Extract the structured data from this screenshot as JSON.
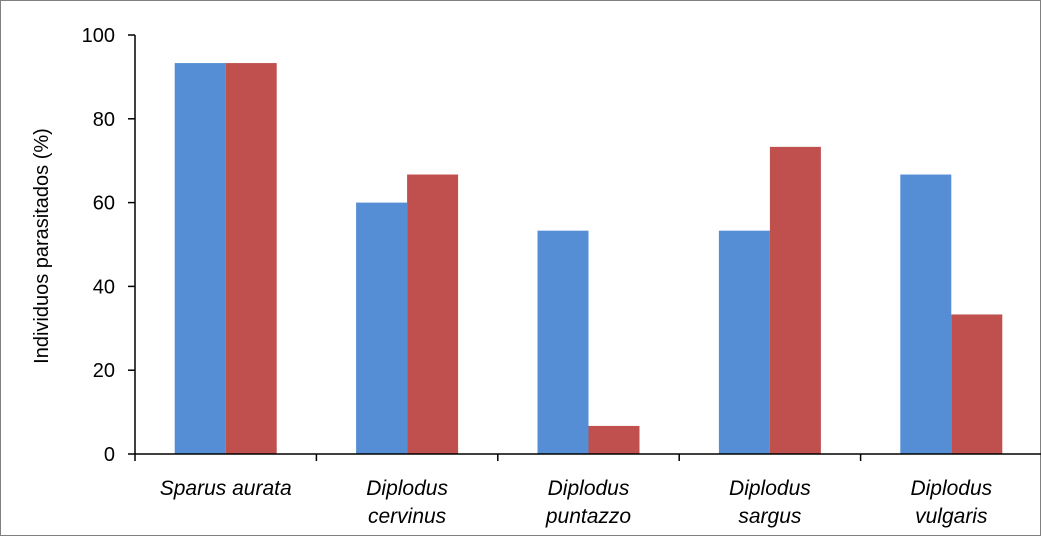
{
  "chart_data": {
    "type": "bar",
    "title": "",
    "xlabel": "",
    "ylabel": "Individuos parasitados (%)",
    "ylim": [
      0,
      100
    ],
    "yticks": [
      0,
      20,
      40,
      60,
      80,
      100
    ],
    "grid": false,
    "legend": "none",
    "categories": [
      [
        "Sparus aurata"
      ],
      [
        "Diplodus",
        "cervinus"
      ],
      [
        "Diplodus",
        "puntazzo"
      ],
      [
        "Diplodus",
        "sargus"
      ],
      [
        "Diplodus",
        "vulgaris"
      ]
    ],
    "series": [
      {
        "color": "#558ED5",
        "values": [
          93.3,
          60.0,
          53.3,
          53.3,
          66.7
        ]
      },
      {
        "color": "#C0504D",
        "values": [
          93.3,
          66.7,
          6.7,
          73.3,
          33.3
        ]
      }
    ]
  }
}
